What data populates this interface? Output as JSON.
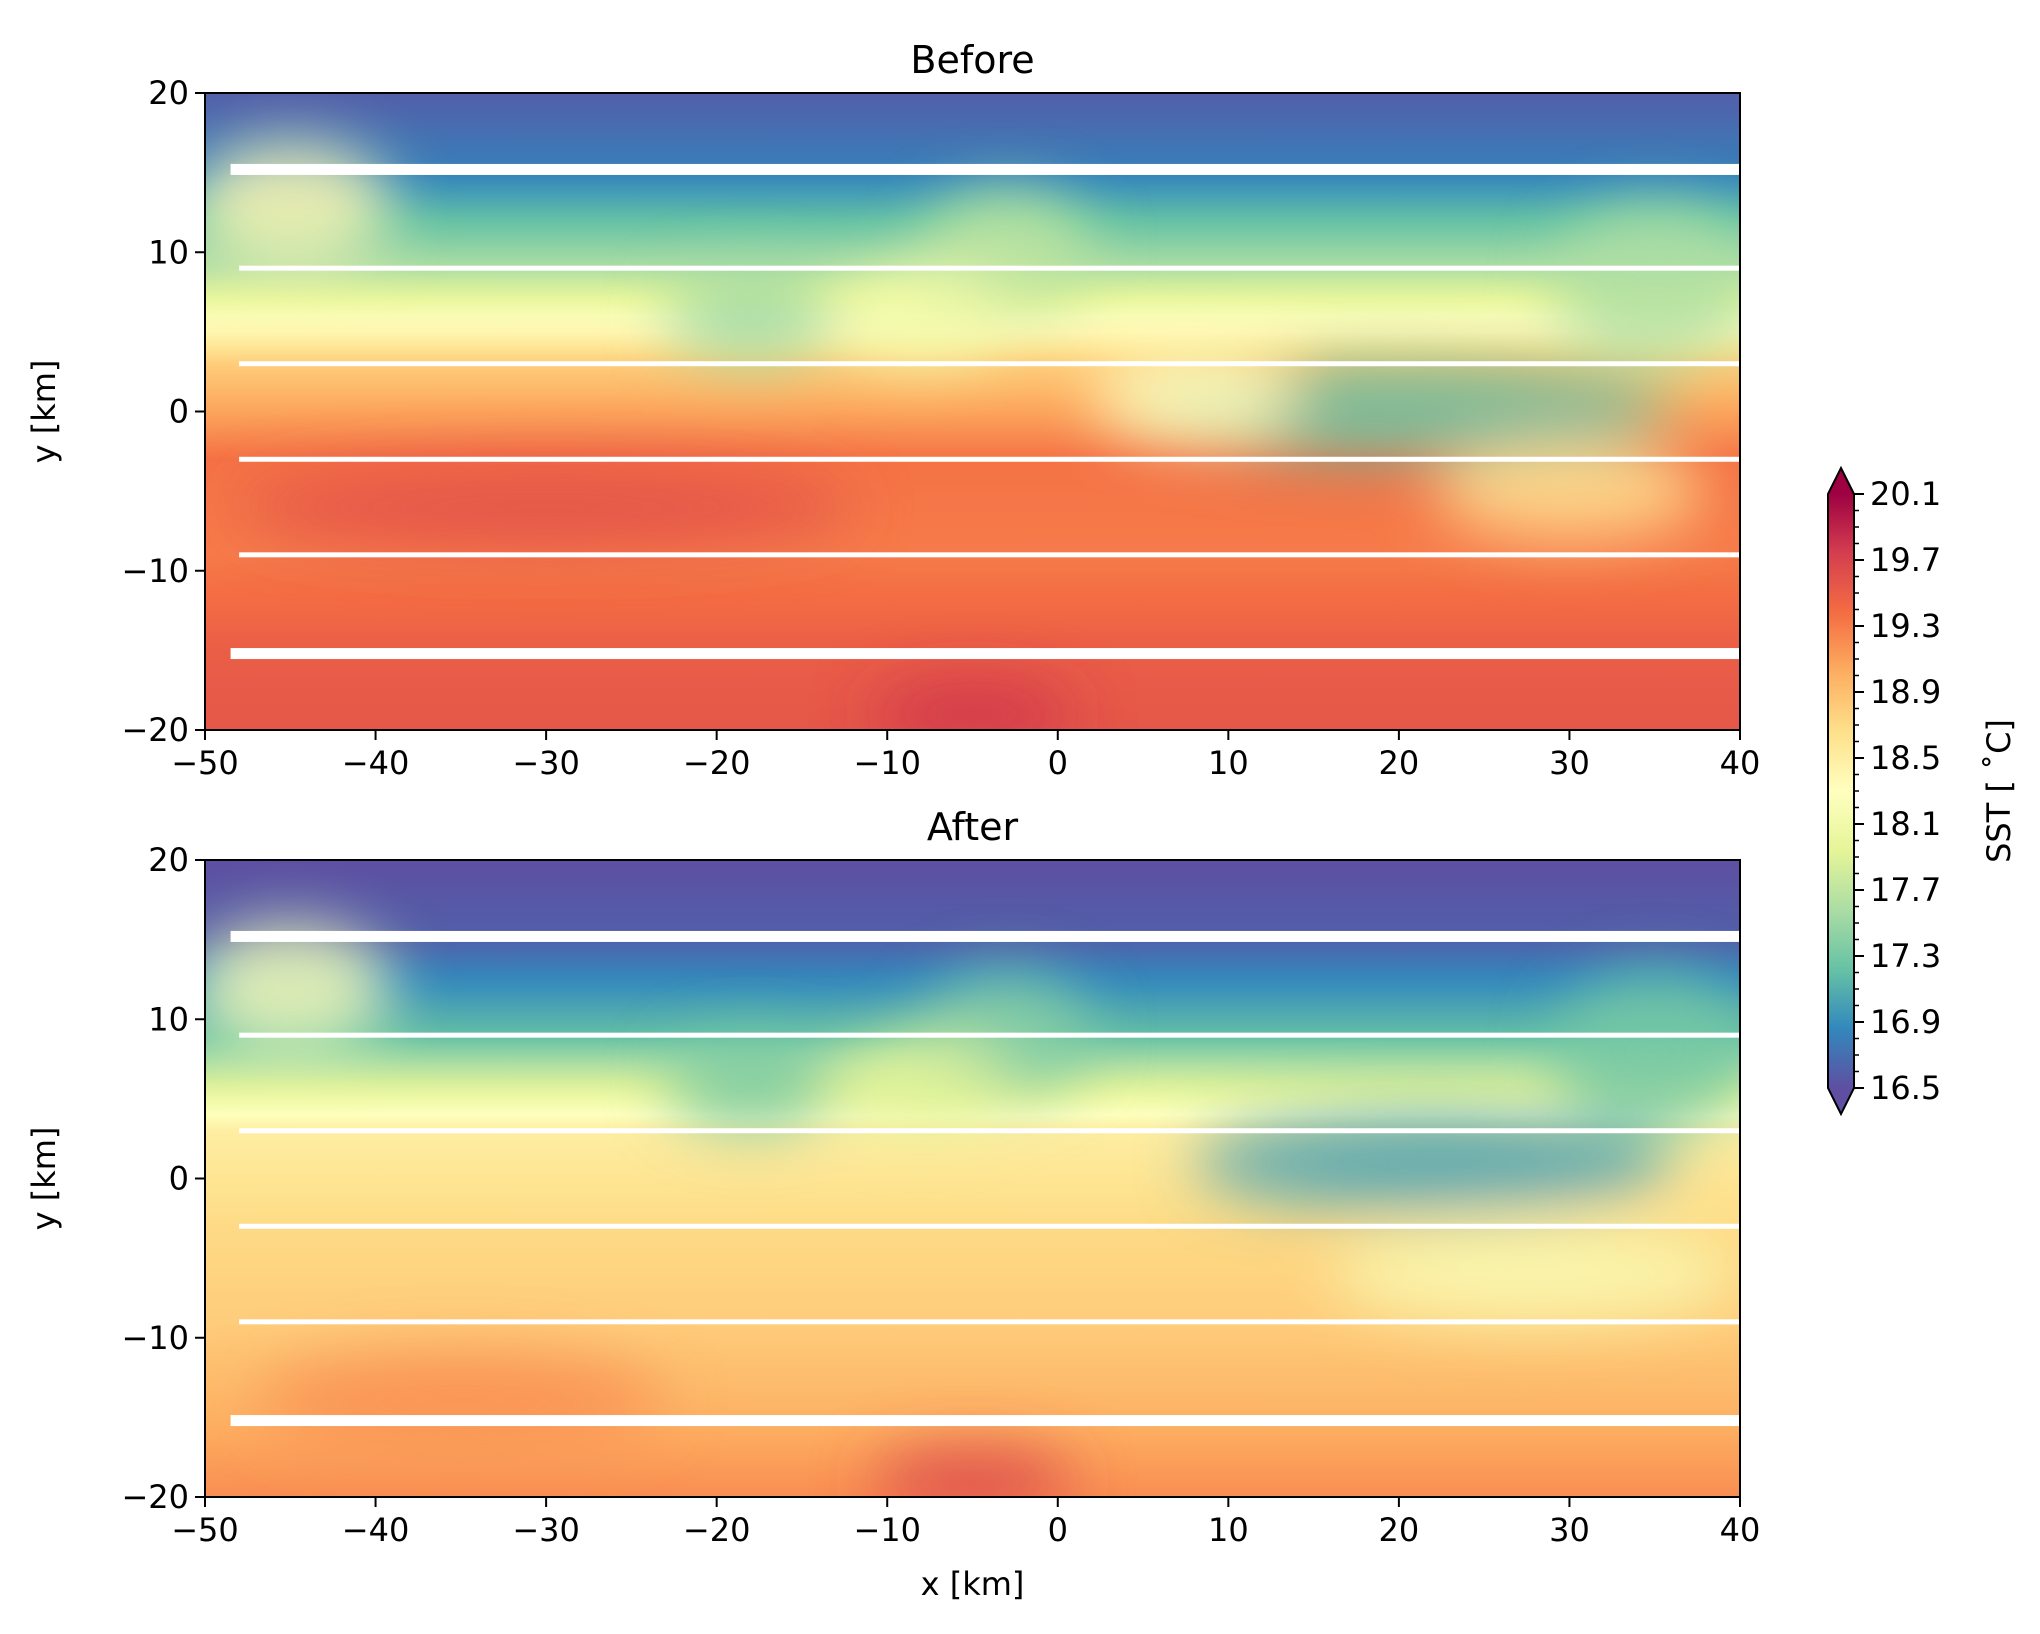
{
  "chart_data": {
    "type": "heatmap",
    "colormap": [
      "#5e4fa2",
      "#3288bd",
      "#66c2a5",
      "#abdda4",
      "#e6f598",
      "#ffffbf",
      "#fee08b",
      "#fdae61",
      "#f46d43",
      "#d53e4f",
      "#9e0142"
    ],
    "gap_color": "#ffffff",
    "colorbar": {
      "label": "SST [$^\\circ$C]",
      "label_display": "SST [ ˚C]",
      "min": 16.5,
      "max": 20.1,
      "extend": "both",
      "ticks": [
        16.5,
        16.9,
        17.3,
        17.7,
        18.1,
        18.5,
        18.9,
        19.3,
        19.7,
        20.1
      ],
      "tick_labels": [
        "16.5",
        "16.9",
        "17.3",
        "17.7",
        "18.1",
        "18.5",
        "18.9",
        "19.3",
        "19.7",
        "20.1"
      ]
    },
    "panels": [
      {
        "title": "Before",
        "xlabel": "",
        "ylabel": "y [km]",
        "xlim": [
          -50,
          40
        ],
        "ylim": [
          -20,
          20
        ],
        "xticks": [
          -50,
          -40,
          -30,
          -20,
          -10,
          0,
          10,
          20,
          30,
          40
        ],
        "xtick_labels": [
          "−50",
          "−40",
          "−30",
          "−20",
          "−10",
          "0",
          "10",
          "20",
          "30",
          "40"
        ],
        "yticks": [
          -20,
          -10,
          0,
          10,
          20
        ],
        "ytick_labels": [
          "−20",
          "−10",
          "0",
          "10",
          "20"
        ],
        "gaps_y": [
          15.2,
          9.0,
          3.0,
          -3.0,
          -9.0,
          -15.2
        ],
        "base_sst_by_y": [
          [
            -20,
            19.55
          ],
          [
            -15.2,
            19.5
          ],
          [
            -9,
            19.3
          ],
          [
            -3,
            19.35
          ],
          [
            3,
            18.8
          ],
          [
            9,
            17.6
          ],
          [
            15.2,
            16.8
          ],
          [
            20,
            16.6
          ]
        ],
        "features": [
          {
            "x": 35,
            "y": 8,
            "rx": 6,
            "ry": 5,
            "sst": 17.6
          },
          {
            "x": -3,
            "y": 10,
            "rx": 5,
            "ry": 4,
            "sst": 17.7
          },
          {
            "x": -8,
            "y": 6,
            "rx": 5,
            "ry": 3,
            "sst": 18.1
          },
          {
            "x": -18,
            "y": 6,
            "rx": 5,
            "ry": 3,
            "sst": 17.5
          },
          {
            "x": -45,
            "y": 13,
            "rx": 6,
            "ry": 4,
            "sst": 18.4
          },
          {
            "x": 20,
            "y": 0,
            "rx": 16,
            "ry": 3,
            "sst": 17.2
          },
          {
            "x": 8,
            "y": 1,
            "rx": 6,
            "ry": 3,
            "sst": 18.3
          },
          {
            "x": 30,
            "y": -5,
            "rx": 8,
            "ry": 3,
            "sst": 18.6
          },
          {
            "x": -30,
            "y": -6,
            "rx": 18,
            "ry": 2.5,
            "sst": 19.6
          },
          {
            "x": -5,
            "y": -19,
            "rx": 6,
            "ry": 2,
            "sst": 19.8
          }
        ]
      },
      {
        "title": "After",
        "xlabel": "x [km]",
        "ylabel": "y [km]",
        "xlim": [
          -50,
          40
        ],
        "ylim": [
          -20,
          20
        ],
        "xticks": [
          -50,
          -40,
          -30,
          -20,
          -10,
          0,
          10,
          20,
          30,
          40
        ],
        "xtick_labels": [
          "−50",
          "−40",
          "−30",
          "−20",
          "−10",
          "0",
          "10",
          "20",
          "30",
          "40"
        ],
        "yticks": [
          -20,
          -10,
          0,
          10,
          20
        ],
        "ytick_labels": [
          "−20",
          "−10",
          "0",
          "10",
          "20"
        ],
        "gaps_y": [
          15.2,
          9.0,
          3.0,
          -3.0,
          -9.0,
          -15.2
        ],
        "base_sst_by_y": [
          [
            -20,
            19.2
          ],
          [
            -15.2,
            19.0
          ],
          [
            -9,
            18.8
          ],
          [
            -3,
            18.7
          ],
          [
            3,
            18.5
          ],
          [
            9,
            17.2
          ],
          [
            15.2,
            16.6
          ],
          [
            20,
            16.5
          ]
        ],
        "features": [
          {
            "x": 35,
            "y": 8,
            "rx": 6,
            "ry": 5,
            "sst": 17.3
          },
          {
            "x": -3,
            "y": 9,
            "rx": 5,
            "ry": 4,
            "sst": 17.4
          },
          {
            "x": -8,
            "y": 6,
            "rx": 5,
            "ry": 3,
            "sst": 17.9
          },
          {
            "x": -18,
            "y": 6,
            "rx": 5,
            "ry": 3,
            "sst": 17.3
          },
          {
            "x": -45,
            "y": 12,
            "rx": 6,
            "ry": 4,
            "sst": 18.2
          },
          {
            "x": 22,
            "y": 1,
            "rx": 14,
            "ry": 3,
            "sst": 17.0
          },
          {
            "x": 28,
            "y": -6,
            "rx": 12,
            "ry": 3,
            "sst": 18.2
          },
          {
            "x": -35,
            "y": -14,
            "rx": 12,
            "ry": 3,
            "sst": 19.2
          },
          {
            "x": -5,
            "y": -19,
            "rx": 6,
            "ry": 2,
            "sst": 19.7
          }
        ]
      }
    ]
  }
}
